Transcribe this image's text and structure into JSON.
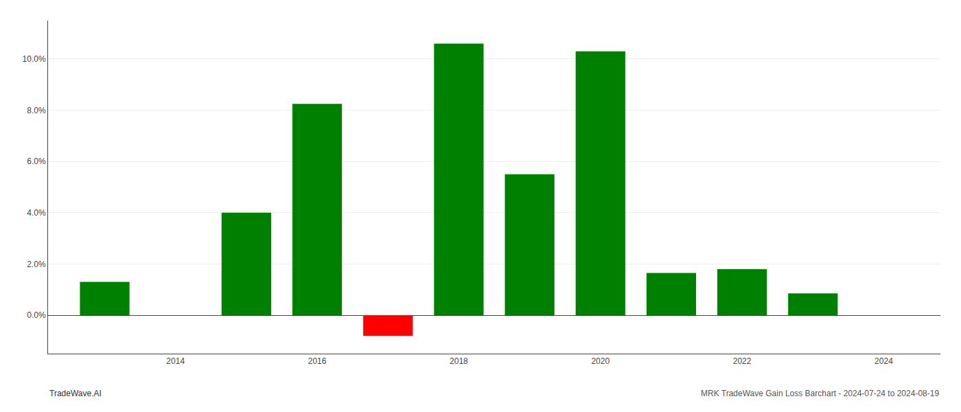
{
  "chart_data": {
    "type": "bar",
    "x": [
      2013,
      2015,
      2016,
      2017,
      2018,
      2019,
      2020,
      2021,
      2022,
      2023
    ],
    "values": [
      1.3,
      4.0,
      8.25,
      -0.8,
      10.6,
      5.5,
      10.3,
      1.65,
      1.8,
      0.85
    ],
    "colors": [
      "#008000",
      "#008000",
      "#008000",
      "#ff0000",
      "#008000",
      "#008000",
      "#008000",
      "#008000",
      "#008000",
      "#008000"
    ],
    "xlim": [
      2012.2,
      2024.8
    ],
    "xticks": [
      2014,
      2016,
      2018,
      2020,
      2022,
      2024
    ],
    "ylim": [
      -1.5,
      11.5
    ],
    "yticks": [
      {
        "value": 0.0,
        "label": "0.0%"
      },
      {
        "value": 2.0,
        "label": "2.0%"
      },
      {
        "value": 4.0,
        "label": "4.0%"
      },
      {
        "value": 6.0,
        "label": "6.0%"
      },
      {
        "value": 8.0,
        "label": "8.0%"
      },
      {
        "value": 10.0,
        "label": "10.0%"
      }
    ],
    "grid": true,
    "annotations": [
      "TradeWave.AI",
      "MRK TradeWave Gain Loss Barchart - 2024-07-24 to 2024-08-19"
    ]
  }
}
